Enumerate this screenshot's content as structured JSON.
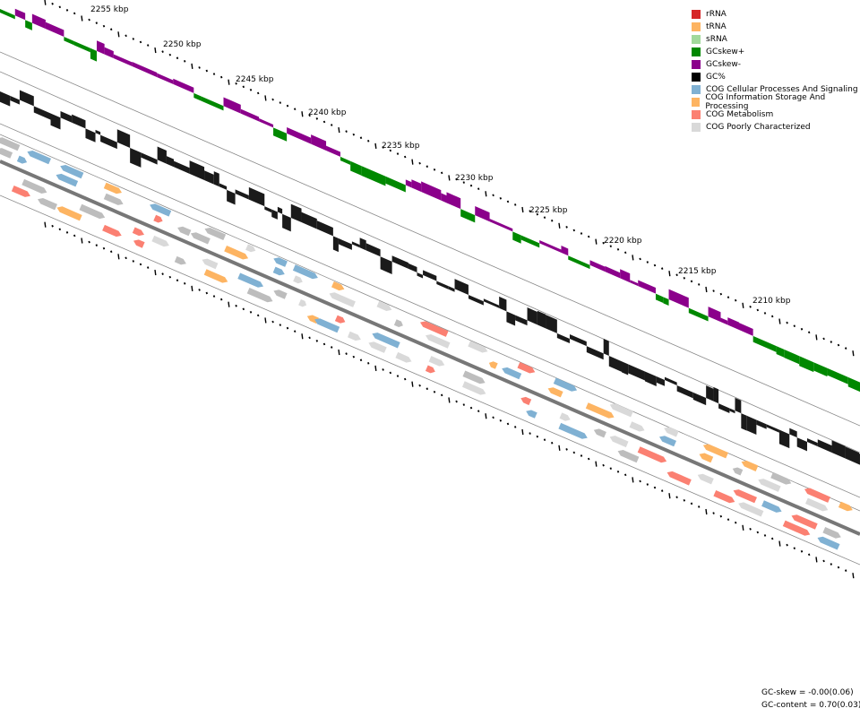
{
  "legend": {
    "items": [
      {
        "label": "rRNA",
        "color": "#d62728"
      },
      {
        "label": "tRNA",
        "color": "#fdb462"
      },
      {
        "label": "sRNA",
        "color": "#a1d99b"
      },
      {
        "label": "GCskew+",
        "color": "#008800"
      },
      {
        "label": "GCskew-",
        "color": "#8b008b"
      },
      {
        "label": "GC%",
        "color": "#000000"
      },
      {
        "label": "COG Cellular Processes And Signaling",
        "color": "#80b1d3"
      },
      {
        "label": "COG Information Storage And Processing",
        "color": "#fdb462"
      },
      {
        "label": "COG Metabolism",
        "color": "#fb8072"
      },
      {
        "label": "COG Poorly Characterized",
        "color": "#d9d9d9"
      }
    ]
  },
  "scale": {
    "tick_labels": [
      "2255 kbp",
      "2250 kbp",
      "2245 kbp",
      "2240 kbp",
      "2235 kbp",
      "2230 kbp",
      "2225 kbp",
      "2220 kbp",
      "2215 kbp",
      "2210 kbp"
    ]
  },
  "stats": {
    "gc_skew": "GC-skew = -0.00(0.06)",
    "gc_content": "GC-content = 0.70(0.03)"
  }
}
